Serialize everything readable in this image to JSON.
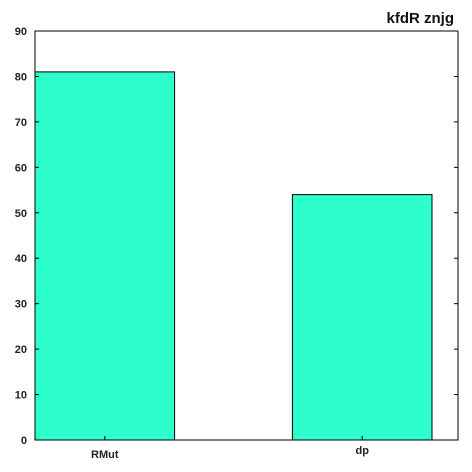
{
  "chart_data": {
    "type": "bar",
    "title": "kfdR  znjg",
    "categories": [
      "RMut",
      "dp"
    ],
    "values": [
      81,
      54
    ],
    "xlabel": "",
    "ylabel": "",
    "ylim": [
      0,
      90
    ],
    "yticks": [
      0,
      10,
      20,
      30,
      40,
      50,
      60,
      70,
      80,
      90
    ],
    "grid": false,
    "legend": "none",
    "bar_color": "#2dffcc",
    "edge_color": "#000000"
  }
}
